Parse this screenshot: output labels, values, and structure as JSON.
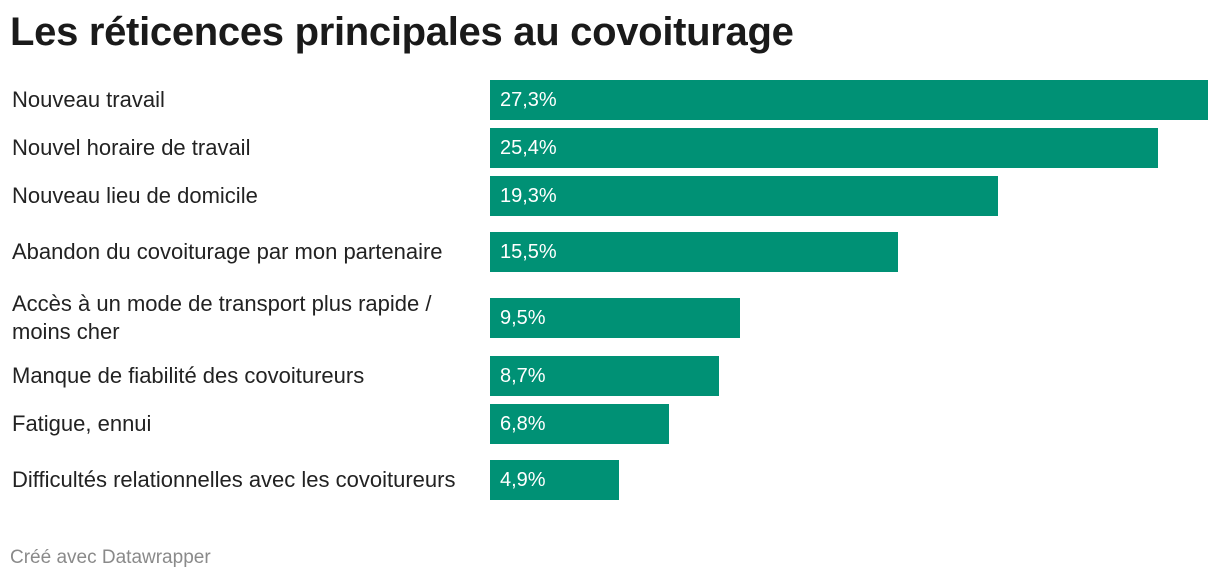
{
  "title": "Les réticences principales au covoiturage",
  "footer": "Créé avec Datawrapper",
  "colors": {
    "bar": "#009175",
    "text": "#222222",
    "footer": "#8a8a8a"
  },
  "chart_data": {
    "type": "bar",
    "orientation": "horizontal",
    "title": "Les réticences principales au covoiturage",
    "xlabel": "",
    "ylabel": "",
    "xlim": [
      0,
      27.3
    ],
    "value_suffix": "%",
    "categories": [
      "Nouveau travail",
      "Nouvel horaire de travail",
      "Nouveau lieu de domicile",
      "Abandon du covoiturage par mon partenaire",
      "Accès à un mode de transport plus rapide / moins cher",
      "Manque de fiabilité des covoitureurs",
      "Fatigue, ennui",
      "Difficultés relationnelles avec les covoitureurs"
    ],
    "values": [
      27.3,
      25.4,
      19.3,
      15.5,
      9.5,
      8.7,
      6.8,
      4.9
    ],
    "value_labels": [
      "27,3%",
      "25,4%",
      "19,3%",
      "15,5%",
      "9,5%",
      "8,7%",
      "6,8%",
      "4,9%"
    ]
  }
}
